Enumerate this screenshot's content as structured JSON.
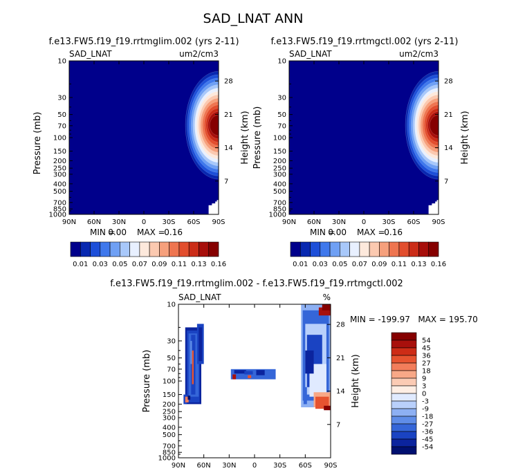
{
  "figure": {
    "title": "SAD_LNAT ANN",
    "panels": [
      {
        "title": "f.e13.FW5.f19_f19.rrtmglim.002 (yrs 2-11)",
        "variable": "SAD_LNAT",
        "units": "um2/cm3",
        "min_label": "MIN =",
        "min_value": "0.00",
        "max_label": "MAX =",
        "max_value": "0.16",
        "colorbar_labels": [
          "0.01",
          "0.03",
          "0.05",
          "0.07",
          "0.09",
          "0.11",
          "0.13",
          "0.16"
        ]
      },
      {
        "title": "f.e13.FW5.f19_f19.rrtmgctl.002 (yrs 2-11)",
        "variable": "SAD_LNAT",
        "units": "um2/cm3",
        "min_label": "MIN =",
        "min_value": "0.00",
        "max_label": "MAX =",
        "max_value": "0.16",
        "colorbar_labels": [
          "0.01",
          "0.03",
          "0.05",
          "0.07",
          "0.09",
          "0.11",
          "0.13",
          "0.16"
        ]
      },
      {
        "title": "f.e13.FW5.f19_f19.rrtmglim.002 - f.e13.FW5.f19_f19.rrtmgctl.002",
        "variable": "SAD_LNAT",
        "units": "%",
        "minmax_text": "MIN = -199.97   MAX = 195.70",
        "colorbar_labels": [
          "54",
          "45",
          "36",
          "27",
          "18",
          "9",
          "3",
          "0",
          "-3",
          "-9",
          "-18",
          "-27",
          "-36",
          "-45",
          "-54"
        ]
      }
    ]
  },
  "chart_data": [
    {
      "type": "heatmap",
      "title": "f.e13.FW5.f19_f19.rrtmglim.002 (yrs 2-11)",
      "variable": "SAD_LNAT",
      "units": "um2/cm3",
      "xlabel": "",
      "ylabel": "Pressure (mb)",
      "y2label": "Height (km)",
      "x_ticks": [
        "90N",
        "60N",
        "30N",
        "0",
        "30S",
        "60S",
        "90S"
      ],
      "y_ticks": [
        10,
        30,
        50,
        70,
        100,
        150,
        200,
        250,
        300,
        400,
        500,
        700,
        850,
        1000
      ],
      "y2_ticks": [
        7,
        14,
        21,
        28
      ],
      "xlim": [
        90,
        -90
      ],
      "ylim": [
        1000,
        10
      ],
      "min": 0.0,
      "max": 0.16,
      "peak": {
        "lat": -80,
        "pressure": 75,
        "value": 0.16
      }
    },
    {
      "type": "heatmap",
      "title": "f.e13.FW5.f19_f19.rrtmgctl.002 (yrs 2-11)",
      "variable": "SAD_LNAT",
      "units": "um2/cm3",
      "xlabel": "",
      "ylabel": "Pressure (mb)",
      "y2label": "Height (km)",
      "x_ticks": [
        "90N",
        "60N",
        "30N",
        "0",
        "30S",
        "60S",
        "90S"
      ],
      "y_ticks": [
        10,
        30,
        50,
        70,
        100,
        150,
        200,
        250,
        300,
        400,
        500,
        700,
        850,
        1000
      ],
      "y2_ticks": [
        7,
        14,
        21,
        28
      ],
      "xlim": [
        90,
        -90
      ],
      "ylim": [
        1000,
        10
      ],
      "min": 0.0,
      "max": 0.16,
      "peak": {
        "lat": -80,
        "pressure": 75,
        "value": 0.16
      }
    },
    {
      "type": "heatmap",
      "title": "f.e13.FW5.f19_f19.rrtmglim.002 - f.e13.FW5.f19_f19.rrtmgctl.002",
      "variable": "SAD_LNAT",
      "units": "%",
      "xlabel": "",
      "ylabel": "Pressure (mb)",
      "y2label": "Height (km)",
      "x_ticks": [
        "90N",
        "60N",
        "30N",
        "0",
        "30S",
        "60S",
        "90S"
      ],
      "y_ticks": [
        10,
        30,
        50,
        70,
        100,
        150,
        200,
        250,
        300,
        400,
        500,
        700,
        850,
        1000
      ],
      "y2_ticks": [
        7,
        14,
        21,
        28
      ],
      "xlim": [
        90,
        -90
      ],
      "ylim": [
        1000,
        10
      ],
      "min": -199.97,
      "max": 195.7
    }
  ],
  "colors": {
    "seq": [
      "#00008b",
      "#0828b0",
      "#1d4fd8",
      "#3f78ec",
      "#6fa0f4",
      "#a8c8fa",
      "#e8f0ff",
      "#fde9dc",
      "#fbc9b0",
      "#f6a07c",
      "#ee7550",
      "#e24e2e",
      "#cb2d18",
      "#a70f0b",
      "#850000"
    ],
    "div": [
      "#850000",
      "#a8100c",
      "#cd2c17",
      "#e65330",
      "#f27d5b",
      "#f8a887",
      "#fbcbb4",
      "#feeee4",
      "#e0eaff",
      "#b9d0fb",
      "#8db0f3",
      "#5f8de8",
      "#3566d8",
      "#1a43c2",
      "#0b249e",
      "#001070"
    ]
  }
}
